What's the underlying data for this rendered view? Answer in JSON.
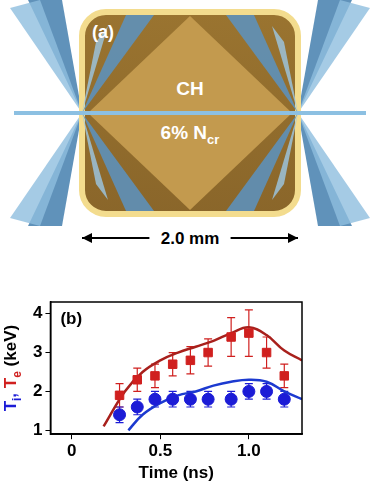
{
  "diagram": {
    "panel": "(a)",
    "material": "CH",
    "fill": {
      "text": "6% N",
      "subscript": "cr"
    },
    "dimension": "2.0 mm"
  },
  "chart_data": {
    "type": "scatter",
    "annotations": [
      "(b)"
    ],
    "xlabel": "Time (ns)",
    "ylabel": [
      {
        "text": "T",
        "subscript": "i",
        "color": "#1c1cd6"
      },
      {
        "text": ", ",
        "color": "#1c1cd6"
      },
      {
        "text": "T",
        "subscript": "e",
        "color": "#d0201f"
      },
      {
        "text": " (keV)",
        "color": "#000000"
      }
    ],
    "xlim": [
      -0.12,
      1.3
    ],
    "xticks": [
      0,
      0.5,
      {
        "value": 1,
        "label": "1.0"
      }
    ],
    "ylim": [
      0.9,
      4.3
    ],
    "yticks": [
      1,
      2,
      3,
      4
    ],
    "grid": false,
    "series": [
      {
        "type": "line",
        "color": "#a8201c",
        "line_style": "solid",
        "x": [
          0.18,
          0.3,
          0.4,
          0.5,
          0.6,
          0.7,
          0.8,
          0.9,
          1.0,
          1.1,
          1.2,
          1.3
        ],
        "values": [
          1.1,
          2.0,
          2.5,
          2.8,
          3.0,
          3.15,
          3.3,
          3.5,
          3.65,
          3.45,
          3.05,
          2.8
        ]
      },
      {
        "type": "line",
        "color": "#1c3ad0",
        "line_style": "solid",
        "x": [
          0.32,
          0.4,
          0.5,
          0.6,
          0.7,
          0.8,
          0.9,
          1.0,
          1.1,
          1.2,
          1.3
        ],
        "values": [
          1.0,
          1.4,
          1.7,
          1.9,
          2.0,
          2.15,
          2.25,
          2.3,
          2.25,
          2.0,
          1.8
        ]
      },
      {
        "type": "scatter",
        "color": "#d0201f",
        "marker": "square",
        "x": [
          0.27,
          0.37,
          0.47,
          0.57,
          0.67,
          0.77,
          0.9,
          1.0,
          1.1,
          1.2
        ],
        "values": [
          1.9,
          2.3,
          2.4,
          2.7,
          2.8,
          3.0,
          3.4,
          3.5,
          3.0,
          2.4
        ],
        "errors": [
          0.3,
          0.3,
          0.3,
          0.3,
          0.35,
          0.35,
          0.5,
          0.6,
          0.4,
          0.3
        ]
      },
      {
        "type": "scatter",
        "color": "#1c1cd6",
        "marker": "circle",
        "x": [
          0.27,
          0.37,
          0.47,
          0.57,
          0.67,
          0.77,
          0.9,
          1.0,
          1.1,
          1.2
        ],
        "values": [
          1.4,
          1.6,
          1.8,
          1.8,
          1.8,
          1.8,
          1.8,
          2.0,
          2.0,
          1.8
        ],
        "errors": [
          0.2,
          0.2,
          0.2,
          0.2,
          0.2,
          0.2,
          0.2,
          0.2,
          0.2,
          0.2
        ]
      }
    ]
  }
}
